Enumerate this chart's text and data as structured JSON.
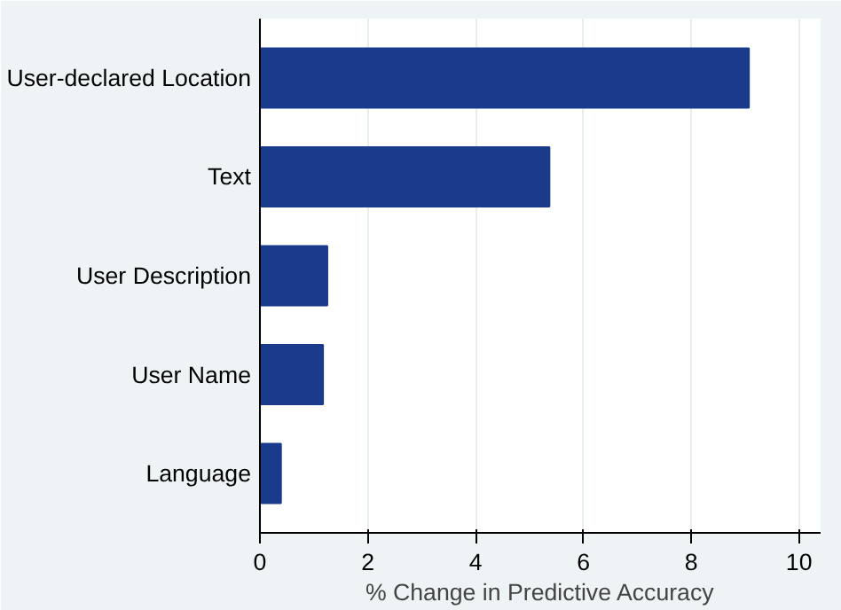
{
  "chart_data": {
    "type": "bar",
    "orientation": "horizontal",
    "categories": [
      "User-declared Location",
      "Text",
      "User Description",
      "User Name",
      "Language"
    ],
    "values": [
      9.07,
      5.37,
      1.25,
      1.17,
      0.39
    ],
    "color": "#1a3a8c",
    "xlabel": "% Change in Predictive Accuracy",
    "xlim": [
      0,
      10.4
    ],
    "xticks": [
      0,
      2,
      4,
      6,
      8,
      10
    ],
    "grid": "x"
  }
}
